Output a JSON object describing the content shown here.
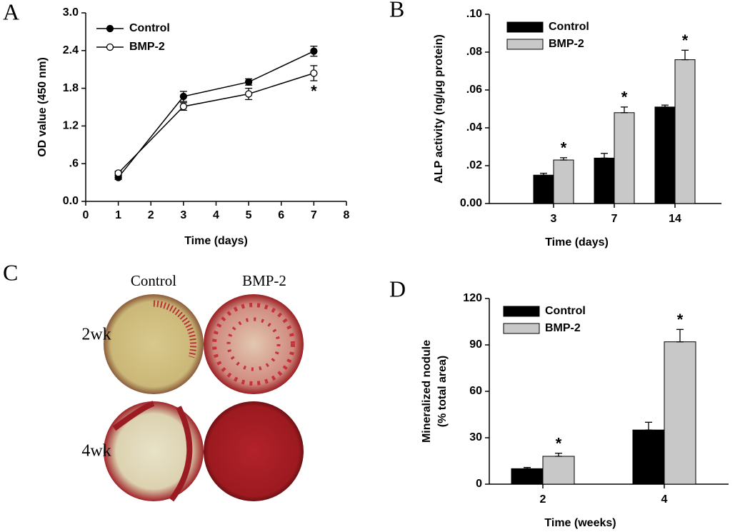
{
  "chart_data": [
    {
      "type": "line",
      "label": "A",
      "xlabel": "Time (days)",
      "ylabel": "OD value (450 nm)",
      "x": [
        1,
        3,
        5,
        7
      ],
      "xlim": [
        0,
        8
      ],
      "xticks": [
        0,
        1,
        2,
        3,
        4,
        5,
        6,
        7,
        8
      ],
      "ylim": [
        0,
        3
      ],
      "yticks": [
        {
          "value": 0,
          "label": "0.0"
        },
        {
          "value": 0.6,
          "label": ".6"
        },
        1.2,
        1.8,
        2.4,
        {
          "value": 3,
          "label": "3.0"
        }
      ],
      "series": [
        {
          "name": "Control",
          "color": "#000000",
          "marker_fill": "#000000",
          "values": [
            0.38,
            1.67,
            1.9,
            2.39
          ],
          "errors": [
            0.03,
            0.08,
            0.05,
            0.08
          ]
        },
        {
          "name": "BMP-2",
          "color": "#000000",
          "marker_fill": "#ffffff",
          "values": [
            0.45,
            1.51,
            1.71,
            2.04
          ],
          "errors": [
            0.03,
            0.06,
            0.09,
            0.12
          ],
          "annotations": [
            null,
            null,
            null,
            "*"
          ]
        }
      ]
    },
    {
      "type": "bar",
      "label": "B",
      "xlabel": "Time (days)",
      "ylabel": "ALP activity (ng/μg protein)",
      "categories": [
        "3",
        "7",
        "14"
      ],
      "ylim": [
        0,
        0.1
      ],
      "yticks": [
        {
          "value": 0,
          "label": "0.00"
        },
        {
          "value": 0.02,
          "label": ".02"
        },
        {
          "value": 0.04,
          "label": ".04"
        },
        {
          "value": 0.06,
          "label": ".06"
        },
        {
          "value": 0.08,
          "label": ".08"
        },
        {
          "value": 0.1,
          "label": ".10"
        }
      ],
      "series": [
        {
          "name": "Control",
          "color": "#000000",
          "values": [
            0.015,
            0.024,
            0.051
          ],
          "errors": [
            0.001,
            0.0025,
            0.001
          ]
        },
        {
          "name": "BMP-2",
          "color": "#c8c8c8",
          "values": [
            0.023,
            0.048,
            0.076
          ],
          "errors": [
            0.0012,
            0.003,
            0.005
          ],
          "annotations": [
            "*",
            "*",
            "*"
          ]
        }
      ]
    },
    {
      "type": "bar",
      "label": "D",
      "xlabel": "Time (weeks)",
      "ylabel": [
        "Mineralized nodule",
        "(% total area)"
      ],
      "categories": [
        "2",
        "4"
      ],
      "ylim": [
        0,
        120
      ],
      "yticks": [
        0,
        30,
        60,
        90,
        120
      ],
      "series": [
        {
          "name": "Control",
          "color": "#000000",
          "values": [
            10,
            35
          ],
          "errors": [
            0.8,
            5
          ]
        },
        {
          "name": "BMP-2",
          "color": "#c8c8c8",
          "values": [
            18,
            92
          ],
          "errors": [
            2,
            8
          ],
          "annotations": [
            "*",
            "*"
          ]
        }
      ]
    }
  ],
  "photo_panel": {
    "label": "C",
    "columns": [
      "Control",
      "BMP-2"
    ],
    "rows": [
      "2wk",
      "4wk"
    ]
  }
}
